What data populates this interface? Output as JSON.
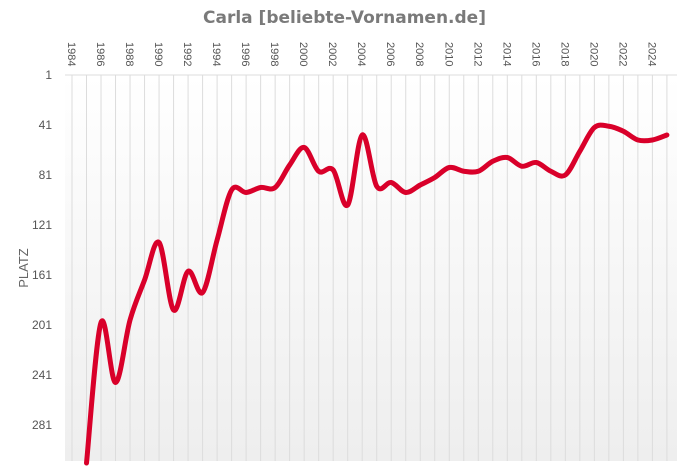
{
  "chart_data": {
    "type": "line",
    "title": "Carla [beliebte-Vornamen.de]",
    "xlabel": "",
    "ylabel": "PLATZ",
    "y_inverted": true,
    "ylim": [
      1,
      310
    ],
    "yticks": [
      1,
      41,
      81,
      121,
      161,
      201,
      241,
      281
    ],
    "xticks": [
      1984,
      1986,
      1988,
      1990,
      1992,
      1994,
      1996,
      1998,
      2000,
      2002,
      2004,
      2006,
      2008,
      2010,
      2012,
      2014,
      2016,
      2018,
      2020,
      2022,
      2024
    ],
    "grid": "vertical lines per year",
    "line_color": "#d9002a",
    "series": [
      {
        "name": "Carla",
        "x": [
          1985,
          1986,
          1987,
          1988,
          1989,
          1990,
          1991,
          1992,
          1993,
          1994,
          1995,
          1996,
          1997,
          1998,
          1999,
          2000,
          2001,
          2002,
          2003,
          2004,
          2005,
          2006,
          2007,
          2008,
          2009,
          2010,
          2011,
          2012,
          2013,
          2014,
          2015,
          2016,
          2017,
          2018,
          2019,
          2020,
          2021,
          2022,
          2023,
          2024,
          2025
        ],
        "values": [
          330,
          199,
          247,
          197,
          165,
          135,
          189,
          158,
          175,
          133,
          93,
          95,
          91,
          91,
          73,
          59,
          78,
          77,
          105,
          49,
          90,
          87,
          95,
          89,
          83,
          75,
          78,
          78,
          70,
          67,
          74,
          71,
          78,
          81,
          62,
          43,
          42,
          46,
          53,
          53,
          49
        ]
      }
    ]
  }
}
